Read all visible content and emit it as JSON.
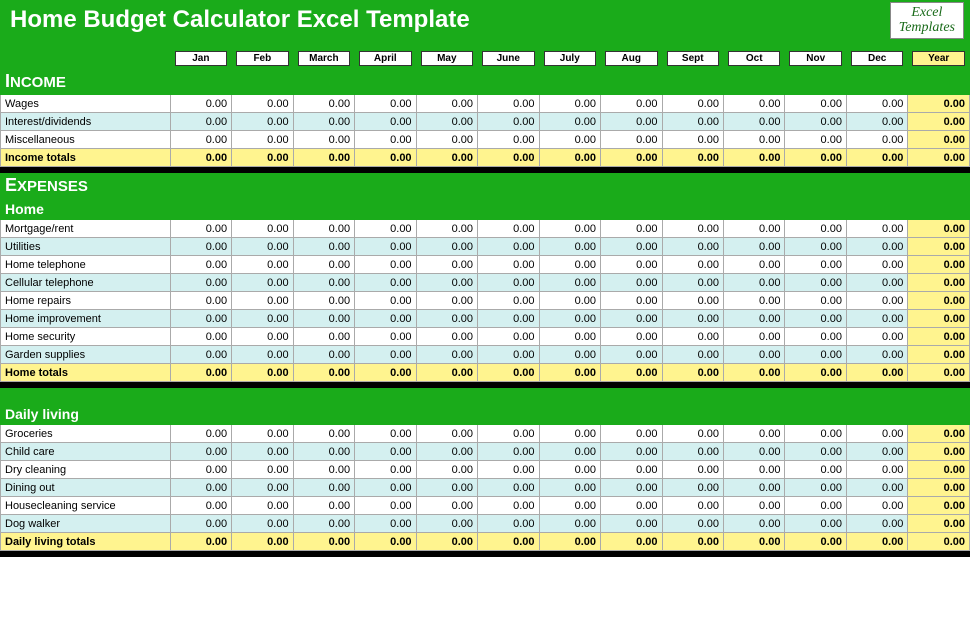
{
  "title": "Home Budget Calculator Excel Template",
  "logo": {
    "line1": "Excel",
    "line2": "Templates"
  },
  "months": [
    "Jan",
    "Feb",
    "March",
    "April",
    "May",
    "June",
    "July",
    "Aug",
    "Sept",
    "Oct",
    "Nov",
    "Dec"
  ],
  "year_label": "Year",
  "colors": {
    "green": "#1aab1a",
    "alt_row": "#d4f0f0",
    "totals": "#fff48f",
    "black": "#000000",
    "white": "#ffffff",
    "border": "#aaaaaa"
  },
  "sections": {
    "income": {
      "heading_cap": "I",
      "heading_rest": "NCOME",
      "rows": [
        {
          "label": "Wages",
          "vals": [
            "0.00",
            "0.00",
            "0.00",
            "0.00",
            "0.00",
            "0.00",
            "0.00",
            "0.00",
            "0.00",
            "0.00",
            "0.00",
            "0.00"
          ],
          "year": "0.00"
        },
        {
          "label": "Interest/dividends",
          "vals": [
            "0.00",
            "0.00",
            "0.00",
            "0.00",
            "0.00",
            "0.00",
            "0.00",
            "0.00",
            "0.00",
            "0.00",
            "0.00",
            "0.00"
          ],
          "year": "0.00"
        },
        {
          "label": "Miscellaneous",
          "vals": [
            "0.00",
            "0.00",
            "0.00",
            "0.00",
            "0.00",
            "0.00",
            "0.00",
            "0.00",
            "0.00",
            "0.00",
            "0.00",
            "0.00"
          ],
          "year": "0.00"
        }
      ],
      "totals": {
        "label": "Income totals",
        "vals": [
          "0.00",
          "0.00",
          "0.00",
          "0.00",
          "0.00",
          "0.00",
          "0.00",
          "0.00",
          "0.00",
          "0.00",
          "0.00",
          "0.00"
        ],
        "year": "0.00"
      }
    },
    "expenses": {
      "heading_cap": "E",
      "heading_rest": "XPENSES"
    },
    "home": {
      "heading": "Home",
      "rows": [
        {
          "label": "Mortgage/rent",
          "vals": [
            "0.00",
            "0.00",
            "0.00",
            "0.00",
            "0.00",
            "0.00",
            "0.00",
            "0.00",
            "0.00",
            "0.00",
            "0.00",
            "0.00"
          ],
          "year": "0.00"
        },
        {
          "label": "Utilities",
          "vals": [
            "0.00",
            "0.00",
            "0.00",
            "0.00",
            "0.00",
            "0.00",
            "0.00",
            "0.00",
            "0.00",
            "0.00",
            "0.00",
            "0.00"
          ],
          "year": "0.00"
        },
        {
          "label": "Home telephone",
          "vals": [
            "0.00",
            "0.00",
            "0.00",
            "0.00",
            "0.00",
            "0.00",
            "0.00",
            "0.00",
            "0.00",
            "0.00",
            "0.00",
            "0.00"
          ],
          "year": "0.00"
        },
        {
          "label": "Cellular telephone",
          "vals": [
            "0.00",
            "0.00",
            "0.00",
            "0.00",
            "0.00",
            "0.00",
            "0.00",
            "0.00",
            "0.00",
            "0.00",
            "0.00",
            "0.00"
          ],
          "year": "0.00"
        },
        {
          "label": "Home repairs",
          "vals": [
            "0.00",
            "0.00",
            "0.00",
            "0.00",
            "0.00",
            "0.00",
            "0.00",
            "0.00",
            "0.00",
            "0.00",
            "0.00",
            "0.00"
          ],
          "year": "0.00"
        },
        {
          "label": "Home improvement",
          "vals": [
            "0.00",
            "0.00",
            "0.00",
            "0.00",
            "0.00",
            "0.00",
            "0.00",
            "0.00",
            "0.00",
            "0.00",
            "0.00",
            "0.00"
          ],
          "year": "0.00"
        },
        {
          "label": "Home security",
          "vals": [
            "0.00",
            "0.00",
            "0.00",
            "0.00",
            "0.00",
            "0.00",
            "0.00",
            "0.00",
            "0.00",
            "0.00",
            "0.00",
            "0.00"
          ],
          "year": "0.00"
        },
        {
          "label": "Garden supplies",
          "vals": [
            "0.00",
            "0.00",
            "0.00",
            "0.00",
            "0.00",
            "0.00",
            "0.00",
            "0.00",
            "0.00",
            "0.00",
            "0.00",
            "0.00"
          ],
          "year": "0.00"
        }
      ],
      "totals": {
        "label": "Home totals",
        "vals": [
          "0.00",
          "0.00",
          "0.00",
          "0.00",
          "0.00",
          "0.00",
          "0.00",
          "0.00",
          "0.00",
          "0.00",
          "0.00",
          "0.00"
        ],
        "year": "0.00"
      }
    },
    "daily": {
      "heading": "Daily living",
      "rows": [
        {
          "label": "Groceries",
          "vals": [
            "0.00",
            "0.00",
            "0.00",
            "0.00",
            "0.00",
            "0.00",
            "0.00",
            "0.00",
            "0.00",
            "0.00",
            "0.00",
            "0.00"
          ],
          "year": "0.00"
        },
        {
          "label": "Child care",
          "vals": [
            "0.00",
            "0.00",
            "0.00",
            "0.00",
            "0.00",
            "0.00",
            "0.00",
            "0.00",
            "0.00",
            "0.00",
            "0.00",
            "0.00"
          ],
          "year": "0.00"
        },
        {
          "label": "Dry cleaning",
          "vals": [
            "0.00",
            "0.00",
            "0.00",
            "0.00",
            "0.00",
            "0.00",
            "0.00",
            "0.00",
            "0.00",
            "0.00",
            "0.00",
            "0.00"
          ],
          "year": "0.00"
        },
        {
          "label": "Dining out",
          "vals": [
            "0.00",
            "0.00",
            "0.00",
            "0.00",
            "0.00",
            "0.00",
            "0.00",
            "0.00",
            "0.00",
            "0.00",
            "0.00",
            "0.00"
          ],
          "year": "0.00"
        },
        {
          "label": "Housecleaning service",
          "vals": [
            "0.00",
            "0.00",
            "0.00",
            "0.00",
            "0.00",
            "0.00",
            "0.00",
            "0.00",
            "0.00",
            "0.00",
            "0.00",
            "0.00"
          ],
          "year": "0.00"
        },
        {
          "label": "Dog walker",
          "vals": [
            "0.00",
            "0.00",
            "0.00",
            "0.00",
            "0.00",
            "0.00",
            "0.00",
            "0.00",
            "0.00",
            "0.00",
            "0.00",
            "0.00"
          ],
          "year": "0.00"
        }
      ],
      "totals": {
        "label": "Daily living totals",
        "vals": [
          "0.00",
          "0.00",
          "0.00",
          "0.00",
          "0.00",
          "0.00",
          "0.00",
          "0.00",
          "0.00",
          "0.00",
          "0.00",
          "0.00"
        ],
        "year": "0.00"
      }
    }
  }
}
